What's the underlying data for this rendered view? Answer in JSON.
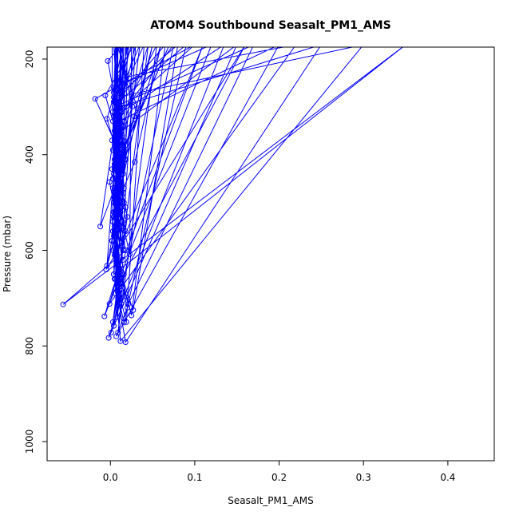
{
  "chart_data": {
    "type": "line",
    "title": "ATOM4 Southbound Seasalt_PM1_AMS",
    "xlabel": "Seasalt_PM1_AMS",
    "ylabel": "Pressure (mbar)",
    "xlim": [
      -0.075,
      0.455
    ],
    "ylim": [
      1040,
      175
    ],
    "y_reversed": true,
    "grid": false,
    "x_ticks": [
      {
        "value": 0.0,
        "label": "0.0"
      },
      {
        "value": 0.1,
        "label": "0.1"
      },
      {
        "value": 0.2,
        "label": "0.2"
      },
      {
        "value": 0.3,
        "label": "0.3"
      },
      {
        "value": 0.4,
        "label": "0.4"
      }
    ],
    "y_ticks": [
      {
        "value": 200,
        "label": "200"
      },
      {
        "value": 400,
        "label": "400"
      },
      {
        "value": 600,
        "label": "600"
      },
      {
        "value": 800,
        "label": "800"
      },
      {
        "value": 1000,
        "label": "1000"
      }
    ],
    "series": [
      {
        "color": "#0000ff",
        "markers": "open-circle",
        "points": [
          [
            0.001,
            772
          ],
          [
            0.012,
            650
          ],
          [
            0.004,
            520
          ],
          [
            0.015,
            400
          ],
          [
            0.008,
            280
          ],
          [
            0.3,
            170
          ],
          [
            0.012,
            790
          ],
          [
            0.006,
            680
          ],
          [
            0.018,
            560
          ],
          [
            0.002,
            430
          ],
          [
            0.011,
            300
          ],
          [
            0.25,
            170
          ],
          [
            0.018,
            792
          ],
          [
            0.009,
            700
          ],
          [
            0.014,
            590
          ],
          [
            0.003,
            470
          ],
          [
            0.01,
            330
          ],
          [
            0.2,
            170
          ],
          [
            0.007,
            780
          ],
          [
            0.02,
            720
          ],
          [
            0.005,
            610
          ],
          [
            0.016,
            500
          ],
          [
            0.006,
            360
          ],
          [
            0.15,
            170
          ],
          [
            -0.002,
            783
          ],
          [
            0.013,
            700
          ],
          [
            0.002,
            580
          ],
          [
            0.011,
            460
          ],
          [
            0.004,
            320
          ],
          [
            0.1,
            170
          ],
          [
            -0.018,
            283
          ],
          [
            0.007,
            380
          ],
          [
            0.012,
            520
          ],
          [
            0.004,
            650
          ],
          [
            0.35,
            170
          ],
          [
            -0.056,
            713
          ],
          [
            0.018,
            600
          ],
          [
            0.006,
            480
          ],
          [
            0.015,
            340
          ],
          [
            0.045,
            170
          ],
          [
            0.003,
            750
          ],
          [
            0.013,
            660
          ],
          [
            0.005,
            550
          ],
          [
            0.014,
            420
          ],
          [
            0.007,
            290
          ],
          [
            0.065,
            170
          ],
          [
            0.025,
            736
          ],
          [
            0.011,
            640
          ],
          [
            0.02,
            530
          ],
          [
            0.006,
            410
          ],
          [
            0.013,
            270
          ],
          [
            0.08,
            170
          ],
          [
            0.027,
            725
          ],
          [
            0.007,
            620
          ],
          [
            0.018,
            510
          ],
          [
            0.003,
            390
          ],
          [
            0.017,
            250
          ],
          [
            0.12,
            170
          ],
          [
            -0.007,
            738
          ],
          [
            0.01,
            640
          ],
          [
            0.003,
            540
          ],
          [
            0.012,
            430
          ],
          [
            0.005,
            300
          ],
          [
            0.17,
            170
          ],
          [
            0.021,
            713
          ],
          [
            0.006,
            610
          ],
          [
            0.015,
            490
          ],
          [
            0.002,
            370
          ],
          [
            0.01,
            240
          ],
          [
            0.22,
            170
          ],
          [
            -0.001,
            712
          ],
          [
            0.012,
            630
          ],
          [
            0.004,
            520
          ],
          [
            0.017,
            410
          ],
          [
            0.009,
            290
          ],
          [
            0.09,
            170
          ],
          [
            0.016,
            751
          ],
          [
            0.005,
            660
          ],
          [
            0.013,
            550
          ],
          [
            0.004,
            440
          ],
          [
            0.014,
            310
          ],
          [
            0.135,
            170
          ],
          [
            0.013,
            712
          ],
          [
            0.003,
            600
          ],
          [
            0.011,
            480
          ],
          [
            0.005,
            350
          ],
          [
            0.055,
            170
          ],
          [
            0.009,
            772
          ],
          [
            0.014,
            690
          ],
          [
            0.004,
            570
          ],
          [
            0.012,
            450
          ],
          [
            0.006,
            330
          ],
          [
            0.075,
            170
          ],
          [
            0.004,
            758
          ],
          [
            0.012,
            670
          ],
          [
            0.003,
            560
          ],
          [
            0.015,
            440
          ],
          [
            0.003,
            310
          ],
          [
            0.04,
            170
          ],
          [
            0.019,
            750
          ],
          [
            0.006,
            660
          ],
          [
            0.014,
            540
          ],
          [
            0.005,
            420
          ],
          [
            0.012,
            300
          ],
          [
            0.03,
            170
          ],
          [
            0.008,
            740
          ],
          [
            0.016,
            650
          ],
          [
            0.007,
            530
          ],
          [
            0.018,
            410
          ],
          [
            0.02,
            170
          ],
          [
            -0.012,
            550
          ],
          [
            0.005,
            470
          ],
          [
            0.012,
            360
          ],
          [
            0.004,
            260
          ],
          [
            0.015,
            170
          ],
          [
            -0.004,
            632
          ],
          [
            0.008,
            520
          ],
          [
            0.016,
            400
          ],
          [
            0.006,
            290
          ],
          [
            0.025,
            170
          ],
          [
            0.023,
            608
          ],
          [
            0.009,
            500
          ],
          [
            0.014,
            380
          ],
          [
            0.004,
            280
          ],
          [
            0.01,
            170
          ],
          [
            0.026,
            299
          ],
          [
            0.014,
            360
          ],
          [
            0.006,
            440
          ],
          [
            0.008,
            170
          ],
          [
            0.032,
            303
          ],
          [
            0.018,
            380
          ],
          [
            0.008,
            460
          ],
          [
            0.06,
            170
          ],
          [
            0.029,
            415
          ],
          [
            0.013,
            480
          ],
          [
            0.005,
            560
          ],
          [
            0.013,
            170
          ],
          [
            -0.003,
            204
          ],
          [
            0.004,
            270
          ],
          [
            0.01,
            350
          ],
          [
            0.004,
            170
          ],
          [
            0.017,
            372
          ],
          [
            0.006,
            450
          ],
          [
            0.014,
            540
          ],
          [
            0.018,
            170
          ],
          [
            0.016,
            330
          ],
          [
            0.005,
            420
          ],
          [
            0.011,
            510
          ],
          [
            0.035,
            170
          ],
          [
            0.012,
            267
          ],
          [
            0.006,
            350
          ],
          [
            0.015,
            440
          ],
          [
            0.028,
            170
          ],
          [
            -0.006,
            276
          ],
          [
            0.008,
            360
          ],
          [
            0.003,
            450
          ],
          [
            0.006,
            170
          ],
          [
            0.004,
            289
          ],
          [
            0.013,
            370
          ],
          [
            0.006,
            460
          ],
          [
            0.022,
            170
          ],
          [
            -0.004,
            325
          ],
          [
            0.01,
            410
          ],
          [
            0.004,
            500
          ],
          [
            0.002,
            170
          ],
          [
            0.003,
            330
          ],
          [
            0.011,
            430
          ],
          [
            0.006,
            520
          ],
          [
            0.05,
            170
          ],
          [
            0.028,
            320
          ],
          [
            0.012,
            420
          ],
          [
            0.004,
            530
          ],
          [
            0.016,
            170
          ],
          [
            0.01,
            439
          ],
          [
            0.004,
            530
          ],
          [
            0.015,
            620
          ],
          [
            0.11,
            170
          ],
          [
            0.014,
            583
          ],
          [
            0.006,
            490
          ],
          [
            0.012,
            400
          ],
          [
            0.07,
            170
          ],
          [
            -0.001,
            457
          ],
          [
            0.009,
            550
          ],
          [
            0.004,
            650
          ],
          [
            0.012,
            170
          ],
          [
            0.015,
            480
          ],
          [
            0.005,
            570
          ],
          [
            0.013,
            660
          ],
          [
            0.16,
            170
          ],
          [
            -0.005,
            640
          ],
          [
            0.007,
            560
          ],
          [
            0.016,
            470
          ],
          [
            0.007,
            170
          ],
          [
            0.002,
            580
          ],
          [
            0.012,
            500
          ],
          [
            0.005,
            410
          ],
          [
            0.009,
            170
          ],
          [
            0.006,
            690
          ],
          [
            0.015,
            600
          ],
          [
            0.004,
            500
          ],
          [
            0.019,
            170
          ]
        ]
      }
    ]
  }
}
